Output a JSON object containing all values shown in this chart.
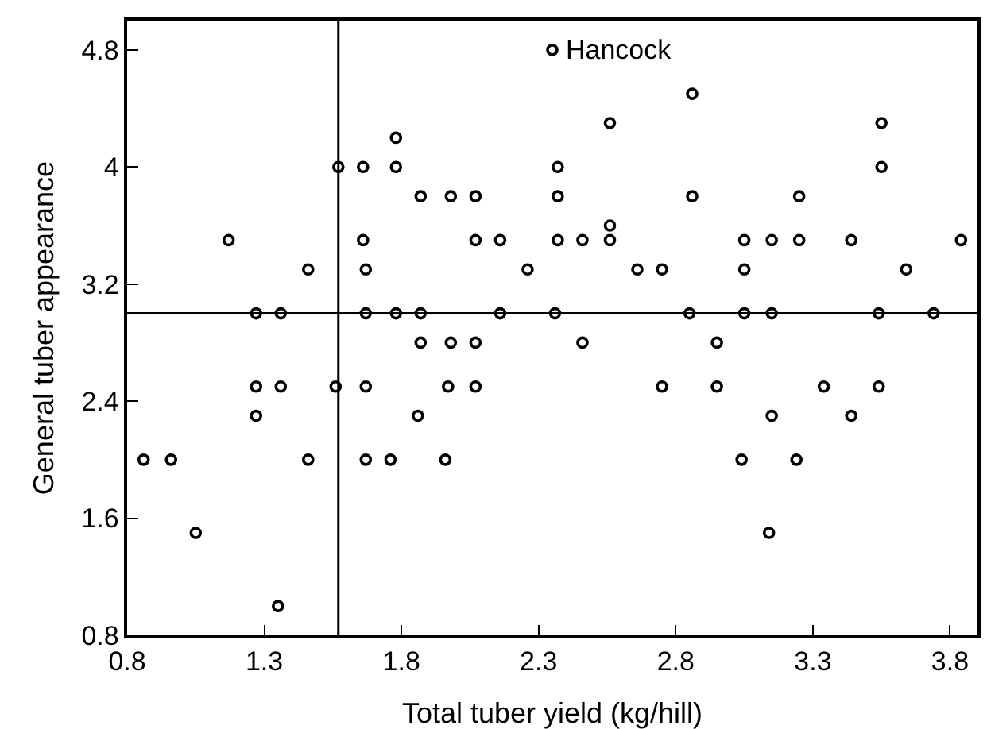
{
  "chart_data": {
    "type": "scatter",
    "xlabel": "Total tuber yield (kg/hill)",
    "ylabel": "General tuber appearance",
    "x": [
      0.86,
      0.96,
      1.05,
      1.17,
      1.27,
      1.27,
      1.27,
      1.35,
      1.36,
      1.36,
      1.46,
      1.46,
      1.56,
      1.57,
      1.66,
      1.66,
      1.67,
      1.67,
      1.67,
      1.67,
      1.76,
      1.78,
      1.78,
      1.78,
      1.86,
      1.87,
      1.87,
      1.87,
      1.96,
      1.97,
      1.98,
      1.98,
      2.07,
      2.07,
      2.07,
      2.07,
      2.16,
      2.16,
      2.26,
      2.35,
      2.36,
      2.37,
      2.37,
      2.37,
      2.46,
      2.46,
      2.56,
      2.56,
      2.56,
      2.66,
      2.75,
      2.75,
      2.85,
      2.86,
      2.86,
      2.95,
      2.95,
      3.04,
      3.05,
      3.05,
      3.05,
      3.14,
      3.15,
      3.15,
      3.15,
      3.24,
      3.25,
      3.25,
      3.34,
      3.44,
      3.44,
      3.54,
      3.54,
      3.55,
      3.55,
      3.64,
      3.74,
      3.84
    ],
    "values": [
      2.0,
      2.0,
      1.5,
      3.5,
      3.0,
      2.5,
      2.3,
      1.0,
      3.0,
      2.5,
      3.3,
      2.0,
      2.5,
      4.0,
      4.0,
      3.5,
      3.3,
      3.0,
      2.5,
      2.0,
      2.0,
      4.2,
      4.0,
      3.0,
      2.3,
      3.8,
      3.0,
      2.8,
      2.0,
      2.5,
      3.8,
      2.8,
      3.8,
      3.5,
      2.8,
      2.5,
      3.5,
      3.0,
      3.3,
      4.8,
      3.0,
      4.0,
      3.8,
      3.5,
      3.5,
      2.8,
      4.3,
      3.6,
      3.5,
      3.3,
      3.3,
      2.5,
      3.0,
      4.5,
      3.8,
      2.8,
      2.5,
      2.0,
      3.5,
      3.3,
      3.0,
      1.5,
      3.5,
      3.0,
      2.3,
      2.0,
      3.8,
      3.5,
      2.5,
      3.5,
      2.3,
      3.0,
      2.5,
      4.3,
      4.0,
      3.3,
      3.0,
      3.5
    ],
    "color": "#000000",
    "marker": "circle",
    "xlim": [
      0.8,
      3.9
    ],
    "ylim": [
      0.8,
      5.0
    ],
    "xticks": [
      0.8,
      1.3,
      1.8,
      2.3,
      2.8,
      3.3,
      3.8
    ],
    "yticks": [
      0.8,
      1.6,
      2.4,
      3.2,
      4.0,
      4.8
    ],
    "grid": false,
    "ref_lines": [
      {
        "axis": "x",
        "value": 1.57,
        "color": "#000000"
      },
      {
        "axis": "y",
        "value": 3.0,
        "color": "#000000"
      }
    ],
    "annotations": [
      {
        "text": "Hancock",
        "x": 2.35,
        "y": 4.8
      }
    ]
  }
}
